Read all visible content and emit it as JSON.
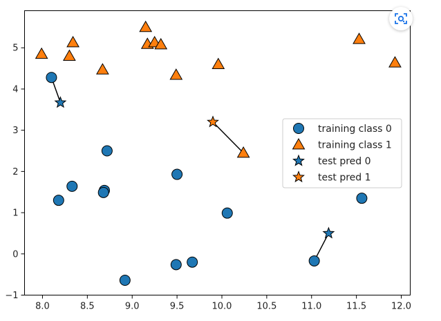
{
  "chart_data": {
    "type": "scatter",
    "title": "",
    "xlabel": "",
    "ylabel": "",
    "xlim": [
      7.8,
      12.1
    ],
    "ylim": [
      -1.0,
      5.9
    ],
    "grid": false,
    "legend_position": "center-right",
    "x_ticks": [
      8.0,
      8.5,
      9.0,
      9.5,
      10.0,
      10.5,
      11.0,
      11.5,
      12.0
    ],
    "x_tick_labels": [
      "8.0",
      "8.5",
      "9.0",
      "9.5",
      "10.0",
      "10.5",
      "11.0",
      "11.5",
      "12.0"
    ],
    "y_ticks": [
      -1,
      0,
      1,
      2,
      3,
      4,
      5
    ],
    "y_tick_labels": [
      "−1",
      "0",
      "1",
      "2",
      "3",
      "4",
      "5"
    ],
    "colors": {
      "class0": "#1f77b4",
      "class1": "#ff7f0e",
      "edge": "#000000"
    },
    "series": [
      {
        "name": "training class 0",
        "marker": "circle",
        "color": "#1f77b4",
        "points": [
          [
            8.1,
            4.28
          ],
          [
            8.18,
            1.3
          ],
          [
            8.33,
            1.64
          ],
          [
            8.69,
            1.54
          ],
          [
            8.68,
            1.49
          ],
          [
            8.72,
            2.5
          ],
          [
            8.92,
            -0.64
          ],
          [
            9.5,
            1.93
          ],
          [
            9.49,
            -0.26
          ],
          [
            9.67,
            -0.2
          ],
          [
            10.06,
            0.99
          ],
          [
            11.03,
            -0.17
          ],
          [
            11.56,
            1.35
          ]
        ]
      },
      {
        "name": "training class 1",
        "marker": "triangle",
        "color": "#ff7f0e",
        "points": [
          [
            7.99,
            4.85
          ],
          [
            8.3,
            4.8
          ],
          [
            8.34,
            5.13
          ],
          [
            8.67,
            4.47
          ],
          [
            9.15,
            5.5
          ],
          [
            9.17,
            5.09
          ],
          [
            9.25,
            5.13
          ],
          [
            9.32,
            5.08
          ],
          [
            9.49,
            4.34
          ],
          [
            9.96,
            4.6
          ],
          [
            10.24,
            2.45
          ],
          [
            11.53,
            5.21
          ],
          [
            11.93,
            4.64
          ]
        ]
      },
      {
        "name": "test pred 0",
        "marker": "star",
        "color": "#1f77b4",
        "points": [
          [
            8.2,
            3.67
          ],
          [
            11.19,
            0.5
          ]
        ]
      },
      {
        "name": "test pred 1",
        "marker": "star",
        "color": "#ff7f0e",
        "points": [
          [
            9.9,
            3.2
          ]
        ]
      }
    ],
    "neighbor_lines": [
      {
        "from": [
          8.2,
          3.67
        ],
        "to": [
          8.1,
          4.28
        ]
      },
      {
        "from": [
          9.9,
          3.2
        ],
        "to": [
          10.24,
          2.45
        ]
      },
      {
        "from": [
          11.19,
          0.5
        ],
        "to": [
          11.03,
          -0.17
        ]
      }
    ]
  },
  "ui": {
    "lens_icon": "lens-icon"
  }
}
